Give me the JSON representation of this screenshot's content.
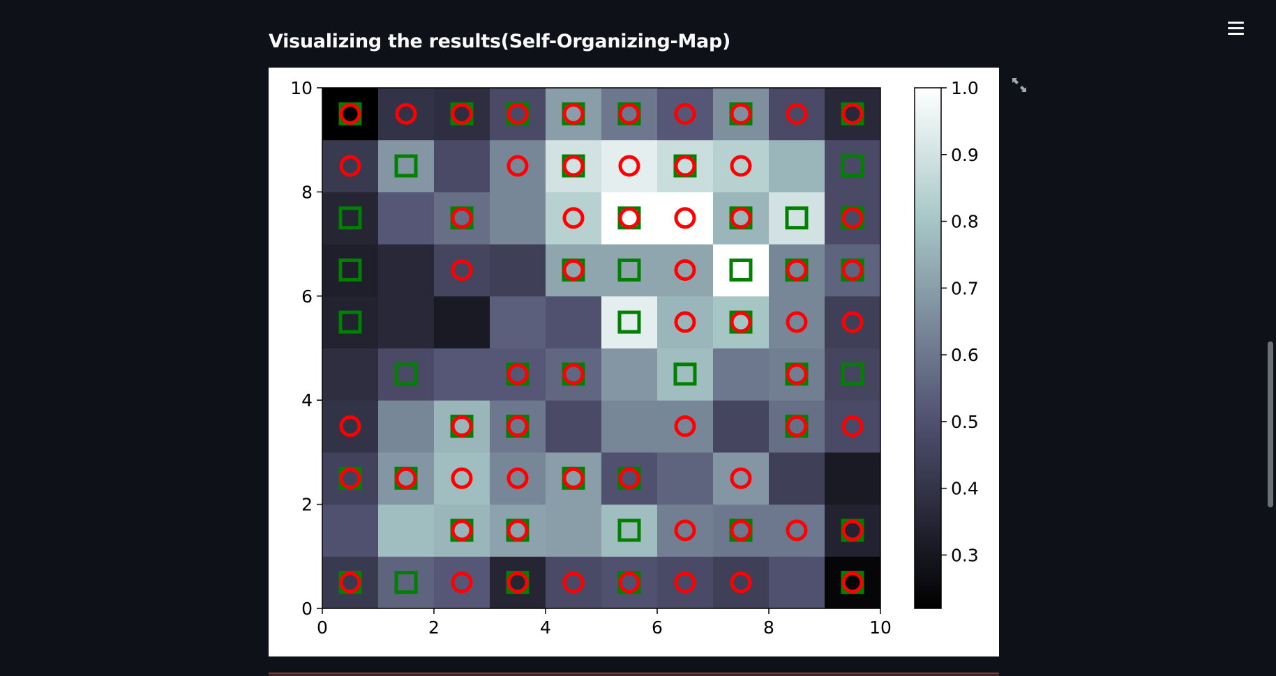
{
  "header": {
    "title": "Visualizing the results(Self-Organizing-Map)"
  },
  "toolbar": {
    "menu_icon": "hamburger-menu-icon",
    "fullscreen_icon": "expand-arrows-icon"
  },
  "colors": {
    "app_background": "#0e1117",
    "circle_marker": "#ff0000",
    "square_marker": "#008000",
    "colormap": "bone"
  },
  "chart_data": {
    "type": "heatmap",
    "title": "",
    "xlabel": "",
    "ylabel": "",
    "xlim": [
      0,
      10
    ],
    "ylim": [
      0,
      10
    ],
    "x_ticks": [
      "0",
      "2",
      "4",
      "6",
      "8",
      "10"
    ],
    "y_ticks": [
      "0",
      "2",
      "4",
      "6",
      "8",
      "10"
    ],
    "grid": false,
    "colorbar": {
      "range": [
        0.22,
        1.0
      ],
      "ticks": [
        "0.3",
        "0.4",
        "0.5",
        "0.6",
        "0.7",
        "0.8",
        "0.9",
        "1.0"
      ]
    },
    "values": [
      [
        0.42,
        0.55,
        0.52,
        0.35,
        0.48,
        0.5,
        0.48,
        0.44,
        0.5,
        0.24
      ],
      [
        0.5,
        0.78,
        0.76,
        0.71,
        0.7,
        0.78,
        0.62,
        0.6,
        0.6,
        0.34
      ],
      [
        0.45,
        0.68,
        0.78,
        0.64,
        0.7,
        0.5,
        0.55,
        0.68,
        0.44,
        0.31
      ],
      [
        0.4,
        0.64,
        0.76,
        0.6,
        0.48,
        0.64,
        0.64,
        0.46,
        0.58,
        0.48
      ],
      [
        0.38,
        0.48,
        0.52,
        0.52,
        0.56,
        0.68,
        0.78,
        0.6,
        0.62,
        0.46
      ],
      [
        0.34,
        0.36,
        0.31,
        0.54,
        0.5,
        0.94,
        0.76,
        0.8,
        0.64,
        0.44
      ],
      [
        0.33,
        0.36,
        0.46,
        0.44,
        0.72,
        0.72,
        0.72,
        1.0,
        0.64,
        0.55
      ],
      [
        0.35,
        0.52,
        0.58,
        0.64,
        0.84,
        1.0,
        1.0,
        0.76,
        0.9,
        0.48
      ],
      [
        0.42,
        0.68,
        0.48,
        0.64,
        0.9,
        0.94,
        0.88,
        0.84,
        0.76,
        0.48
      ],
      [
        0.22,
        0.4,
        0.38,
        0.48,
        0.7,
        0.6,
        0.52,
        0.66,
        0.48,
        0.36
      ]
    ],
    "series": [
      {
        "marker": "o",
        "points": [
          [
            0.5,
            9.5
          ],
          [
            1.5,
            9.5
          ],
          [
            2.5,
            9.5
          ],
          [
            3.5,
            9.5
          ],
          [
            4.5,
            9.5
          ],
          [
            5.5,
            9.5
          ],
          [
            6.5,
            9.5
          ],
          [
            7.5,
            9.5
          ],
          [
            8.5,
            9.5
          ],
          [
            9.5,
            9.5
          ],
          [
            0.5,
            8.5
          ],
          [
            3.5,
            8.5
          ],
          [
            4.5,
            8.5
          ],
          [
            5.5,
            8.5
          ],
          [
            6.5,
            8.5
          ],
          [
            7.5,
            8.5
          ],
          [
            2.5,
            7.5
          ],
          [
            4.5,
            7.5
          ],
          [
            5.5,
            7.5
          ],
          [
            6.5,
            7.5
          ],
          [
            7.5,
            7.5
          ],
          [
            9.5,
            7.5
          ],
          [
            2.5,
            6.5
          ],
          [
            4.5,
            6.5
          ],
          [
            6.5,
            6.5
          ],
          [
            8.5,
            6.5
          ],
          [
            9.5,
            6.5
          ],
          [
            6.5,
            5.5
          ],
          [
            7.5,
            5.5
          ],
          [
            8.5,
            5.5
          ],
          [
            9.5,
            5.5
          ],
          [
            3.5,
            4.5
          ],
          [
            4.5,
            4.5
          ],
          [
            8.5,
            4.5
          ],
          [
            0.5,
            3.5
          ],
          [
            2.5,
            3.5
          ],
          [
            3.5,
            3.5
          ],
          [
            6.5,
            3.5
          ],
          [
            8.5,
            3.5
          ],
          [
            9.5,
            3.5
          ],
          [
            0.5,
            2.5
          ],
          [
            1.5,
            2.5
          ],
          [
            2.5,
            2.5
          ],
          [
            3.5,
            2.5
          ],
          [
            4.5,
            2.5
          ],
          [
            5.5,
            2.5
          ],
          [
            7.5,
            2.5
          ],
          [
            2.5,
            1.5
          ],
          [
            3.5,
            1.5
          ],
          [
            6.5,
            1.5
          ],
          [
            7.5,
            1.5
          ],
          [
            8.5,
            1.5
          ],
          [
            9.5,
            1.5
          ],
          [
            0.5,
            0.5
          ],
          [
            2.5,
            0.5
          ],
          [
            3.5,
            0.5
          ],
          [
            4.5,
            0.5
          ],
          [
            5.5,
            0.5
          ],
          [
            6.5,
            0.5
          ],
          [
            7.5,
            0.5
          ],
          [
            9.5,
            0.5
          ]
        ]
      },
      {
        "marker": "s",
        "points": [
          [
            0.5,
            9.5
          ],
          [
            2.5,
            9.5
          ],
          [
            3.5,
            9.5
          ],
          [
            4.5,
            9.5
          ],
          [
            5.5,
            9.5
          ],
          [
            7.5,
            9.5
          ],
          [
            9.5,
            9.5
          ],
          [
            1.5,
            8.5
          ],
          [
            4.5,
            8.5
          ],
          [
            6.5,
            8.5
          ],
          [
            9.5,
            8.5
          ],
          [
            0.5,
            7.5
          ],
          [
            2.5,
            7.5
          ],
          [
            5.5,
            7.5
          ],
          [
            7.5,
            7.5
          ],
          [
            8.5,
            7.5
          ],
          [
            9.5,
            7.5
          ],
          [
            0.5,
            6.5
          ],
          [
            4.5,
            6.5
          ],
          [
            5.5,
            6.5
          ],
          [
            7.5,
            6.5
          ],
          [
            8.5,
            6.5
          ],
          [
            9.5,
            6.5
          ],
          [
            0.5,
            5.5
          ],
          [
            5.5,
            5.5
          ],
          [
            7.5,
            5.5
          ],
          [
            1.5,
            4.5
          ],
          [
            3.5,
            4.5
          ],
          [
            4.5,
            4.5
          ],
          [
            6.5,
            4.5
          ],
          [
            8.5,
            4.5
          ],
          [
            9.5,
            4.5
          ],
          [
            2.5,
            3.5
          ],
          [
            3.5,
            3.5
          ],
          [
            8.5,
            3.5
          ],
          [
            0.5,
            2.5
          ],
          [
            1.5,
            2.5
          ],
          [
            4.5,
            2.5
          ],
          [
            5.5,
            2.5
          ],
          [
            2.5,
            1.5
          ],
          [
            3.5,
            1.5
          ],
          [
            5.5,
            1.5
          ],
          [
            7.5,
            1.5
          ],
          [
            9.5,
            1.5
          ],
          [
            0.5,
            0.5
          ],
          [
            1.5,
            0.5
          ],
          [
            3.5,
            0.5
          ],
          [
            5.5,
            0.5
          ],
          [
            9.5,
            0.5
          ]
        ]
      }
    ]
  }
}
